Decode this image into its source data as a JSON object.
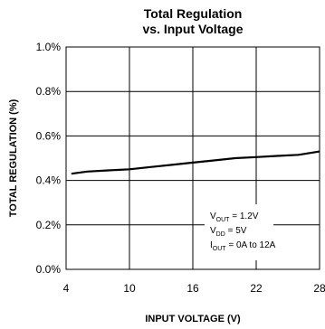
{
  "chart_data": {
    "type": "line",
    "title_lines": [
      "Total Regulation",
      "vs. Input Voltage"
    ],
    "xlabel": "INPUT VOLTAGE (V)",
    "ylabel": "TOTAL REGULATION (%)",
    "xlim": [
      4,
      28
    ],
    "ylim": [
      0.0,
      1.0
    ],
    "x_ticks": [
      4,
      10,
      16,
      22,
      28
    ],
    "x_tick_labels": [
      "4",
      "10",
      "16",
      "22",
      "28"
    ],
    "y_ticks": [
      0.0,
      0.2,
      0.4,
      0.6,
      0.8,
      1.0
    ],
    "y_tick_labels": [
      "0.0%",
      "0.2%",
      "0.4%",
      "0.6%",
      "0.8%",
      "1.0%"
    ],
    "grid": true,
    "series": [
      {
        "x": [
          4.5,
          6,
          8,
          10,
          12,
          14,
          16,
          18,
          20,
          22,
          24,
          26,
          28
        ],
        "y": [
          0.43,
          0.44,
          0.445,
          0.45,
          0.46,
          0.47,
          0.48,
          0.49,
          0.5,
          0.505,
          0.51,
          0.515,
          0.53
        ]
      }
    ],
    "annotations": [
      {
        "main": "V",
        "sub": "OUT",
        "rest": " = 1.2V"
      },
      {
        "main": "V",
        "sub": "DD",
        "rest": " = 5V"
      },
      {
        "main": "I",
        "sub": "OUT",
        "rest": " = 0A to 12A"
      }
    ]
  }
}
